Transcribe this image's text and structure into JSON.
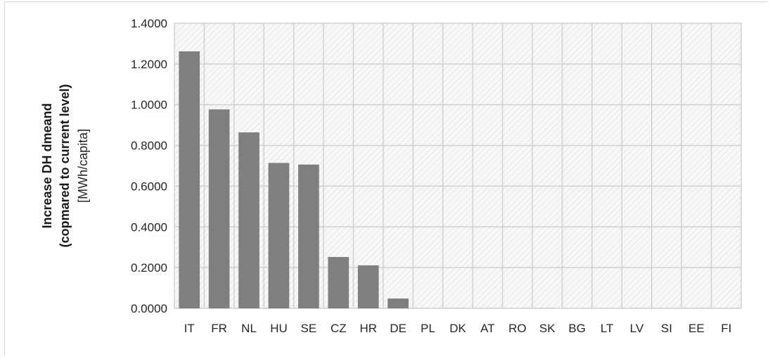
{
  "chart_data": {
    "type": "bar",
    "categories": [
      "IT",
      "FR",
      "NL",
      "HU",
      "SE",
      "CZ",
      "HR",
      "DE",
      "PL",
      "DK",
      "AT",
      "RO",
      "SK",
      "BG",
      "LT",
      "LV",
      "SI",
      "EE",
      "FI"
    ],
    "values": [
      1.262,
      0.977,
      0.864,
      0.714,
      0.706,
      0.252,
      0.211,
      0.048,
      0,
      0,
      0,
      0,
      0,
      0,
      0,
      0,
      0,
      0,
      0
    ],
    "ylabel_line1": "Increase DH dmeand",
    "ylabel_line2": "(copmared to current level)",
    "ylabel_line3": "[MWh/capita]",
    "ylim": [
      0,
      1.4
    ],
    "yticks": [
      "0.0000",
      "0.2000",
      "0.4000",
      "0.6000",
      "0.8000",
      "1.0000",
      "1.2000",
      "1.4000"
    ],
    "grid": true,
    "bar_color": "#7f7f7f"
  }
}
